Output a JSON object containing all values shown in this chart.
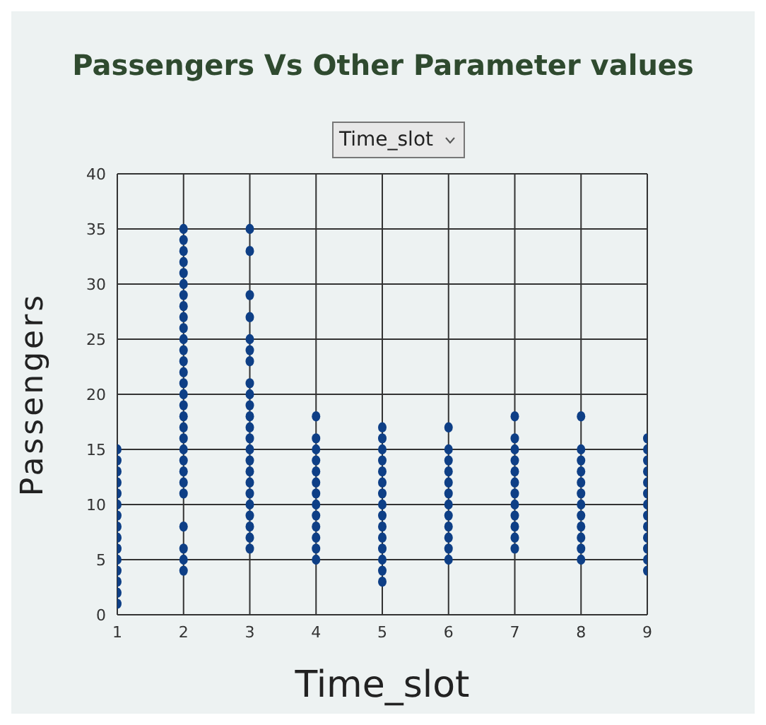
{
  "chart_data": {
    "type": "scatter",
    "title": "Passengers Vs Other Parameter values",
    "xlabel": "Time_slot",
    "ylabel": "Passengers",
    "annotations": [
      "Time_slot"
    ],
    "xlim": [
      1,
      9
    ],
    "xticks": [
      1,
      2,
      3,
      4,
      5,
      6,
      7,
      8,
      9
    ],
    "ylim": [
      0,
      40
    ],
    "yticks": [
      0,
      5,
      10,
      15,
      20,
      25,
      30,
      35,
      40
    ],
    "grid": true,
    "marker": "circle",
    "series": [
      {
        "color": "#0e3f86",
        "x": [
          1,
          1,
          1,
          1,
          1,
          1,
          1,
          1,
          1,
          1,
          1,
          1,
          1,
          1,
          1,
          2,
          2,
          2,
          2,
          2,
          2,
          2,
          2,
          2,
          2,
          2,
          2,
          2,
          2,
          2,
          2,
          2,
          2,
          2,
          2,
          2,
          2,
          2,
          2,
          2,
          2,
          2,
          2,
          2,
          3,
          3,
          3,
          3,
          3,
          3,
          3,
          3,
          3,
          3,
          3,
          3,
          3,
          3,
          3,
          3,
          3,
          3,
          3,
          3,
          3,
          3,
          3,
          4,
          4,
          4,
          4,
          4,
          4,
          4,
          4,
          4,
          4,
          4,
          4,
          4,
          5,
          5,
          5,
          5,
          5,
          5,
          5,
          5,
          5,
          5,
          5,
          5,
          5,
          5,
          5,
          6,
          6,
          6,
          6,
          6,
          6,
          6,
          6,
          6,
          6,
          6,
          6,
          7,
          7,
          7,
          7,
          7,
          7,
          7,
          7,
          7,
          7,
          7,
          7,
          8,
          8,
          8,
          8,
          8,
          8,
          8,
          8,
          8,
          8,
          8,
          8,
          9,
          9,
          9,
          9,
          9,
          9,
          9,
          9,
          9,
          9,
          9,
          9,
          9
        ],
        "values": [
          1,
          2,
          3,
          4,
          5,
          6,
          7,
          8,
          9,
          10,
          11,
          12,
          13,
          14,
          15,
          4,
          5,
          6,
          8,
          11,
          12,
          13,
          14,
          15,
          16,
          17,
          18,
          19,
          20,
          21,
          22,
          23,
          24,
          25,
          26,
          27,
          28,
          29,
          30,
          31,
          32,
          33,
          34,
          35,
          6,
          7,
          8,
          9,
          10,
          11,
          12,
          13,
          14,
          15,
          16,
          17,
          18,
          19,
          20,
          21,
          23,
          24,
          25,
          27,
          29,
          33,
          35,
          5,
          6,
          7,
          8,
          9,
          10,
          11,
          12,
          13,
          14,
          15,
          16,
          18,
          3,
          4,
          5,
          6,
          7,
          8,
          9,
          10,
          11,
          12,
          13,
          14,
          15,
          16,
          17,
          5,
          6,
          7,
          8,
          9,
          10,
          11,
          12,
          13,
          14,
          15,
          17,
          6,
          7,
          8,
          9,
          10,
          11,
          12,
          13,
          14,
          15,
          16,
          18,
          5,
          6,
          7,
          8,
          9,
          10,
          11,
          12,
          13,
          14,
          15,
          18,
          4,
          5,
          6,
          7,
          8,
          9,
          10,
          11,
          12,
          13,
          14,
          15,
          16
        ]
      }
    ]
  }
}
